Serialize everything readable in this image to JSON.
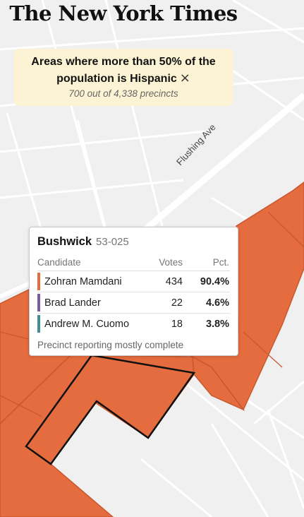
{
  "masthead": "The New York Times",
  "filter": {
    "title": "Areas where more than 50% of the population is Hispanic",
    "close_icon": "×",
    "subtitle": "700 out of 4,338 precincts"
  },
  "map": {
    "road_label": "Flushing Ave",
    "colors": {
      "base": "#f0f0f0",
      "road": "#ffffff",
      "precinct_fill": "#e46c3f",
      "precinct_stroke": "#c9582f",
      "selected_stroke": "#111111"
    }
  },
  "tooltip": {
    "neighborhood": "Bushwick",
    "precinct": "53-025",
    "headers": {
      "candidate": "Candidate",
      "votes": "Votes",
      "pct": "Pct."
    },
    "rows": [
      {
        "name": "Zohran Mamdani",
        "votes": "434",
        "pct": "90.4%",
        "color": "#e46c3f"
      },
      {
        "name": "Brad Lander",
        "votes": "22",
        "pct": "4.6%",
        "color": "#7b5aa6"
      },
      {
        "name": "Andrew M. Cuomo",
        "votes": "18",
        "pct": "3.8%",
        "color": "#3f8f95"
      }
    ],
    "footer": "Precinct reporting mostly complete"
  }
}
